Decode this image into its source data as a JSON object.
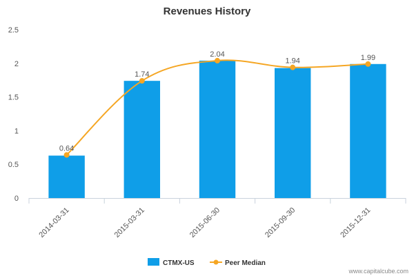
{
  "chart_data": {
    "type": "bar",
    "title": "Revenues History",
    "categories": [
      "2014-03-31",
      "2015-03-31",
      "2015-06-30",
      "2015-09-30",
      "2015-12-31"
    ],
    "series": [
      {
        "name": "CTMX-US",
        "type": "bar",
        "color": "#0f9ee8",
        "values": [
          0.63,
          1.74,
          2.04,
          1.93,
          1.99
        ]
      },
      {
        "name": "Peer Median",
        "type": "line",
        "color": "#f5a623",
        "values": [
          0.64,
          1.74,
          2.04,
          1.94,
          1.99
        ],
        "labels": [
          "0.64",
          "1.74",
          "2.04",
          "1.94",
          "1.99"
        ]
      }
    ],
    "ylim": [
      0,
      2.5
    ],
    "yticks": [
      "0",
      "0.5",
      "1",
      "1.5",
      "2",
      "2.5"
    ],
    "grid": false,
    "legend": "bottom-center"
  },
  "credit": "www.capitalcube.com"
}
